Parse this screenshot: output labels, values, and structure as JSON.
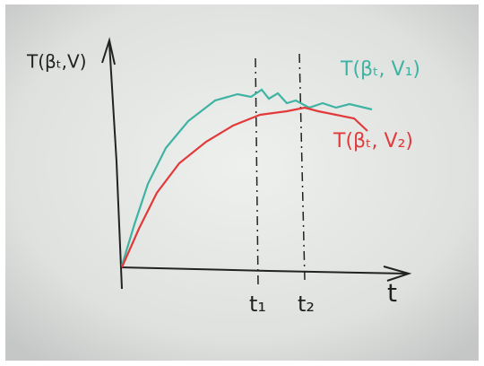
{
  "axes": {
    "y_label": "T(βₜ,V)",
    "x_label": "t"
  },
  "curves": [
    {
      "label": "T(βₜ, V₁)"
    },
    {
      "label": "T(βₜ, V₂)"
    }
  ],
  "markers": [
    {
      "label": "t₁"
    },
    {
      "label": "t₂"
    }
  ]
}
